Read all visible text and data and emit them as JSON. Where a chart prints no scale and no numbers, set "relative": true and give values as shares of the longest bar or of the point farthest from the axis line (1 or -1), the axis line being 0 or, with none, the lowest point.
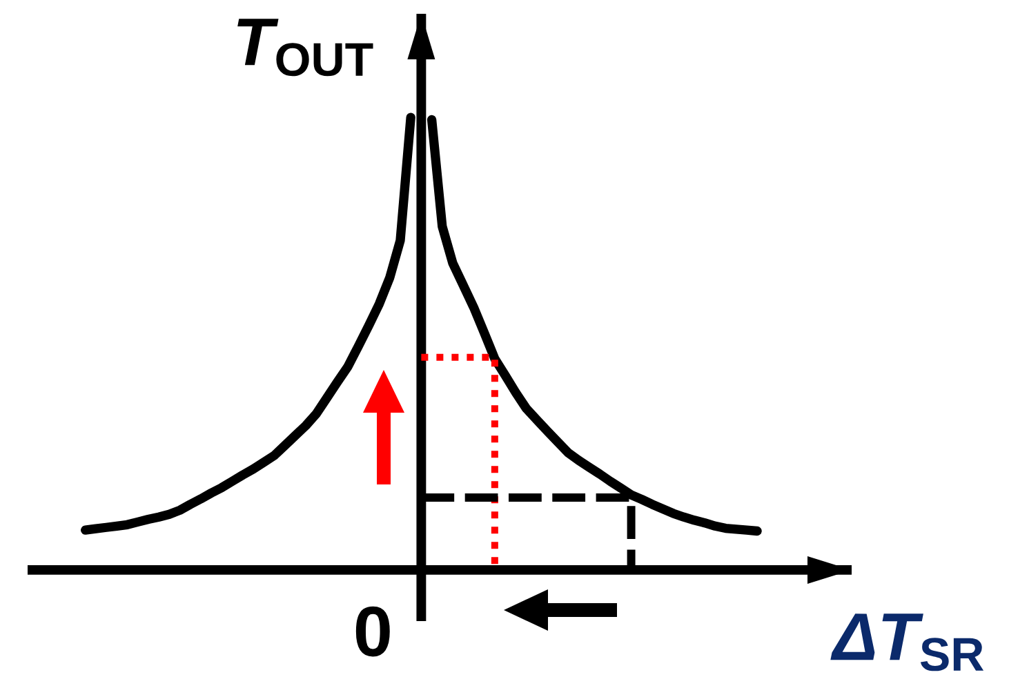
{
  "chart_data": {
    "type": "line",
    "relative": true,
    "xlabel": "ΔT$_{SR}$",
    "ylabel": "T$_{OUT}$",
    "annotations": [
      "0"
    ],
    "categories": [
      null,
      null,
      null,
      null,
      null,
      null,
      null,
      null,
      null,
      null,
      null,
      null,
      null,
      null,
      null,
      null,
      null,
      null,
      null,
      null,
      null,
      null,
      null,
      null,
      null,
      null,
      null,
      null,
      null,
      null,
      null,
      null,
      null,
      null,
      null,
      null,
      null,
      null,
      null,
      null,
      null,
      null,
      null,
      null,
      null,
      null,
      null,
      null,
      null,
      null,
      null,
      null,
      null,
      null,
      null,
      null,
      null,
      null,
      null,
      null,
      null,
      null,
      null,
      null,
      null
    ],
    "series": [
      {
        "color": "#000000",
        "line_style": "solid",
        "values": [
          0.088,
          0.091,
          0.094,
          0.097,
          0.1,
          0.106,
          0.112,
          0.117,
          0.123,
          0.132,
          0.145,
          0.157,
          0.17,
          0.182,
          0.196,
          0.21,
          0.223,
          0.238,
          0.253,
          0.275,
          0.297,
          0.319,
          0.345,
          0.38,
          0.415,
          0.449,
          0.494,
          0.54,
          0.588,
          0.646,
          0.728,
          1.0,
          null,
          0.995,
          0.759,
          0.678,
          0.629,
          0.58,
          0.524,
          0.467,
          0.43,
          0.392,
          0.357,
          0.332,
          0.307,
          0.283,
          0.259,
          0.242,
          0.227,
          0.212,
          0.196,
          0.181,
          0.166,
          0.156,
          0.145,
          0.135,
          0.125,
          0.117,
          0.11,
          0.104,
          0.097,
          0.092,
          0.09,
          0.088,
          0.086
        ]
      },
      {
        "type": "step",
        "color": "#ff0000",
        "line_style": "dotted",
        "values": [
          null,
          null,
          null,
          null,
          null,
          null,
          null,
          null,
          null,
          null,
          null,
          null,
          null,
          null,
          null,
          null,
          null,
          null,
          null,
          null,
          null,
          null,
          null,
          null,
          null,
          null,
          null,
          null,
          null,
          null,
          null,
          null,
          0.47,
          null,
          null,
          null,
          null,
          null,
          null,
          0,
          null,
          null,
          null,
          null,
          null,
          null,
          null,
          null,
          null,
          null,
          null,
          null,
          null,
          null,
          null,
          null,
          null,
          null,
          null,
          null,
          null,
          null,
          null,
          null,
          null
        ]
      },
      {
        "type": "step",
        "color": "#000000",
        "line_style": "dashed",
        "values": [
          null,
          null,
          null,
          null,
          null,
          null,
          null,
          null,
          null,
          null,
          null,
          null,
          null,
          null,
          null,
          null,
          null,
          null,
          null,
          null,
          null,
          null,
          null,
          null,
          null,
          null,
          null,
          null,
          null,
          null,
          null,
          null,
          0.16,
          null,
          null,
          null,
          null,
          null,
          null,
          null,
          null,
          null,
          null,
          null,
          null,
          null,
          null,
          null,
          null,
          null,
          null,
          null,
          0,
          null,
          null,
          null,
          null,
          null,
          null,
          null,
          null,
          null,
          null,
          null,
          null
        ]
      }
    ]
  }
}
